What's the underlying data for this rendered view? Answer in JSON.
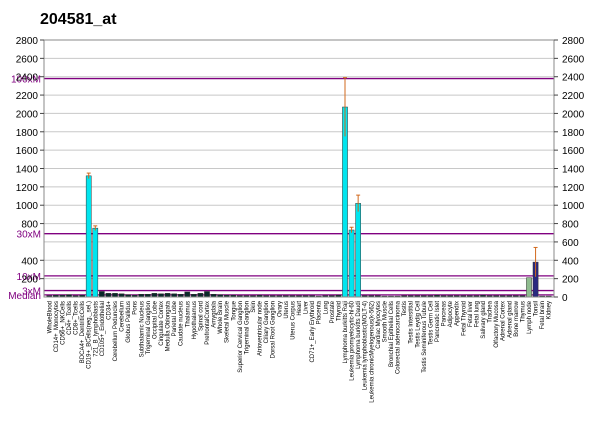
{
  "chart_data": {
    "type": "bar",
    "title": "204581_at",
    "ylim": [
      0,
      2800
    ],
    "yticks": [
      0,
      200,
      400,
      600,
      800,
      1000,
      1200,
      1400,
      1600,
      1800,
      2000,
      2200,
      2400,
      2600,
      2800
    ],
    "left_ticks": [
      {
        "label": "2800",
        "value": 2800
      },
      {
        "label": "2600",
        "value": 2600
      },
      {
        "label": "2400",
        "value": 2400
      },
      {
        "label": "2200",
        "value": 2200
      },
      {
        "label": "2000",
        "value": 2000
      },
      {
        "label": "1800",
        "value": 1800
      },
      {
        "label": "1600",
        "value": 1600
      },
      {
        "label": "1400",
        "value": 1400
      },
      {
        "label": "1200",
        "value": 1200
      },
      {
        "label": "1000",
        "value": 1000
      },
      {
        "label": "800",
        "value": 800
      },
      {
        "label": "400",
        "value": 400
      },
      {
        "label": "200",
        "value": 200
      }
    ],
    "reference_lines": [
      {
        "label": "100xM",
        "value": 2380,
        "color": "#800080"
      },
      {
        "label": "30xM",
        "value": 690,
        "color": "#800080"
      },
      {
        "label": "10xM",
        "value": 230,
        "color": "#800080"
      },
      {
        "label": "3xM",
        "value": 70,
        "color": "#800080"
      },
      {
        "label": "Median",
        "value": 23,
        "color": "#800080"
      }
    ],
    "grid": true,
    "categories": [
      "WholeBlood",
      "CD14+_Monocytes",
      "CD56+_NKCells",
      "CD4+_Tcells",
      "CD8+_Tcells",
      "BDCA4+_DentriticCells",
      "CD19+_BCells(neg._sel.)",
      "721_B_lymphoblasts",
      "CD105+_Endothelial",
      "CD34+",
      "Cerebellum Peduncles",
      "Cerebellum",
      "Globus Pallidus",
      "Pons",
      "Subthalamic Nucleus",
      "Trigeminal Ganglion",
      "Occipital Lobe",
      "Cingulate Cortex",
      "Medulla Oblongata",
      "Parietal Lobe",
      "Caudate nucleus",
      "Thalamus",
      "Hypothalamus",
      "Spinal cord",
      "PrefrontalCortex",
      "Amygdala",
      "Whole Brain",
      "Skeletal Muscle",
      "Tongue",
      "Superior Cervical Ganglion",
      "Trigeminal Ganglion",
      "Skin",
      "Atrioventricular node",
      "Ciliary Ganglion",
      "Dorsal Root Ganglion",
      "Ovary",
      "Uterus",
      "Uterus Corpus",
      "Heart",
      "Liver",
      "CD71+_Early Erythroid",
      "Placenta",
      "Lung",
      "Prostate",
      "Thyroid",
      "Lymphoma burkitts Raji",
      "Leukemia promyelocytic-hl-60",
      "Lymphoma burkitts Daudi",
      "Leukemia lymphoblastic(MOLT-4)",
      "Leukemia chronicMyelogenous(k-562)",
      "Cardiac Myocytes",
      "Smooth Muscle",
      "Bronchial Epithelial Cells",
      "Colorectal adenocarcinoma",
      "Testis",
      "Testis Interstitial",
      "Testis Leydig Cell",
      "Testis Seminiferous Tubule",
      "Testis Germ Cell",
      "Pancreatic Islet",
      "Pancreas",
      "Adipocyte",
      "Appendix",
      "Fetal Thyroid",
      "Fetal liver",
      "Fetal lung",
      "Salivary gland",
      "Trachea",
      "Olfactory Mucosa",
      "Adrenal Cortex",
      "Adrenal gland",
      "Bone marrow",
      "Thymus",
      "Lymph node",
      "Tonsil",
      "Fetal brain",
      "Kidney"
    ],
    "shown_category_labels": [
      "WholeBlood",
      "CD14+_Monocytes",
      "CD56+_NKCells",
      "CD4+_Tcells",
      "CD8+_Tcells",
      "BDCA4+_DentriticCells",
      "CD19+_BCells(neg._sel.)",
      "721_B_lymphoblasts",
      "CD105+_Endothelial",
      "CD34+",
      "Cerebellum Peduncles",
      "Cerebellum",
      "Globus Pallidus",
      "Pons",
      "Subthalamic Nucleus",
      "Trigeminal Ganglion",
      "Occipital Lobe",
      "Cingulate Cortex",
      "Medulla Oblongata",
      "Parietal Lobe",
      "Caudate nucleus",
      "Thalamus",
      "Hypothalamus",
      "Spinal cord",
      "PrefrontalCortex",
      "Amygdala",
      "Whole Brain",
      "Skeletal Muscle",
      "Tongue",
      "Superior Cervical Ganglion",
      "Trigeminal Ganglion",
      "Skin",
      "Atrioventricular node",
      "Ciliary Ganglion",
      "Dorsal Root Ganglion",
      "Ovary",
      "Uterus",
      "Uterus Corpus",
      "Heart",
      "Liver",
      "CD71+_Early Erythroid",
      "Placenta",
      "Lung",
      "Prostate",
      "Thyroid",
      "Lymphoma burkitts Raji",
      "Leukemia promyelocytic-hl-60",
      "Lymphoma burkitts Daudi",
      "Leukemia lymphoblastic(MOLT-4)",
      "Leukemia chronicMyelogenous(k-562)",
      "Cardiac Myocytes",
      "Smooth Muscle",
      "Bronchial Epithelial Cells",
      "Colorectal adenocarcinoma",
      "Testis",
      "Testis Interstitial",
      "Testis Leydig Cell",
      "Testis Seminiferous Tubule",
      "Testis Germ Cell",
      "Pancreatic Islet",
      "Pancreas",
      "Adipocyte",
      "Appendix",
      "Fetal Thyroid",
      "Fetal liver",
      "Fetal lung",
      "Salivary gland",
      "Trachea",
      "Olfactory Mucosa",
      "Adrenal Cortex",
      "Adrenal gland",
      "Bone marrow",
      "Thymus",
      "Lymph node",
      "Tonsil",
      "Fetal brain",
      "Kidney"
    ],
    "series": [
      {
        "values": [
          15,
          20,
          20,
          25,
          15,
          20,
          1320,
          750,
          60,
          40,
          40,
          35,
          25,
          20,
          30,
          30,
          40,
          35,
          40,
          35,
          30,
          55,
          30,
          40,
          60,
          30,
          25,
          20,
          20,
          15,
          15,
          15,
          20,
          15,
          15,
          15,
          15,
          15,
          15,
          15,
          15,
          10,
          15,
          15,
          20,
          2070,
          730,
          1020,
          15,
          15,
          15,
          10,
          10,
          10,
          15,
          15,
          15,
          15,
          15,
          20,
          15,
          15,
          15,
          15,
          15,
          15,
          20,
          15,
          15,
          15,
          15,
          15,
          15,
          210,
          380,
          10,
          10
        ],
        "errors": [
          0,
          0,
          0,
          0,
          0,
          0,
          30,
          25,
          0,
          0,
          0,
          0,
          0,
          0,
          0,
          0,
          0,
          0,
          0,
          0,
          0,
          0,
          0,
          0,
          0,
          0,
          0,
          0,
          0,
          0,
          0,
          0,
          0,
          0,
          0,
          0,
          0,
          0,
          0,
          0,
          0,
          0,
          0,
          0,
          0,
          320,
          30,
          90,
          0,
          0,
          0,
          0,
          0,
          0,
          0,
          0,
          0,
          0,
          0,
          0,
          0,
          0,
          0,
          0,
          0,
          0,
          0,
          0,
          0,
          0,
          0,
          0,
          0,
          0,
          160,
          0,
          0
        ],
        "colors": [
          "#0a2a2a",
          "#0a2a2a",
          "#0a2a2a",
          "#0a2a2a",
          "#0a2a2a",
          "#0a2a2a",
          "#00e5ee",
          "#00e5ee",
          "#0a2a2a",
          "#0a2a2a",
          "#0a2a2a",
          "#0a2a2a",
          "#0a2a2a",
          "#0a2a2a",
          "#0a2a2a",
          "#0a2a2a",
          "#0a2a2a",
          "#0a2a2a",
          "#0a2a2a",
          "#0a2a2a",
          "#0a2a2a",
          "#0a2a2a",
          "#0a2a2a",
          "#0a2a2a",
          "#0a2a2a",
          "#0a2a2a",
          "#0a2a2a",
          "#0a2a2a",
          "#0a2a2a",
          "#0a2a2a",
          "#0a2a2a",
          "#0a2a2a",
          "#0a2a2a",
          "#0a2a2a",
          "#0a2a2a",
          "#0a2a2a",
          "#0a2a2a",
          "#0a2a2a",
          "#0a2a2a",
          "#0a2a2a",
          "#0a2a2a",
          "#0a2a2a",
          "#0a2a2a",
          "#0a2a2a",
          "#0a2a2a",
          "#00e5ee",
          "#00e5ee",
          "#00e5ee",
          "#0a2a2a",
          "#0a2a2a",
          "#0a2a2a",
          "#0a2a2a",
          "#0a2a2a",
          "#0a2a2a",
          "#0a2a2a",
          "#0a2a2a",
          "#0a2a2a",
          "#0a2a2a",
          "#0a2a2a",
          "#0a2a2a",
          "#0a2a2a",
          "#0a2a2a",
          "#0a2a2a",
          "#0a2a2a",
          "#0a2a2a",
          "#0a2a2a",
          "#0a2a2a",
          "#0a2a2a",
          "#0a2a2a",
          "#0a2a2a",
          "#0a2a2a",
          "#0a2a2a",
          "#0a2a2a",
          "#8fbc8f",
          "#2a2a80",
          "#0a2a2a",
          "#0a2a2a"
        ]
      }
    ]
  }
}
